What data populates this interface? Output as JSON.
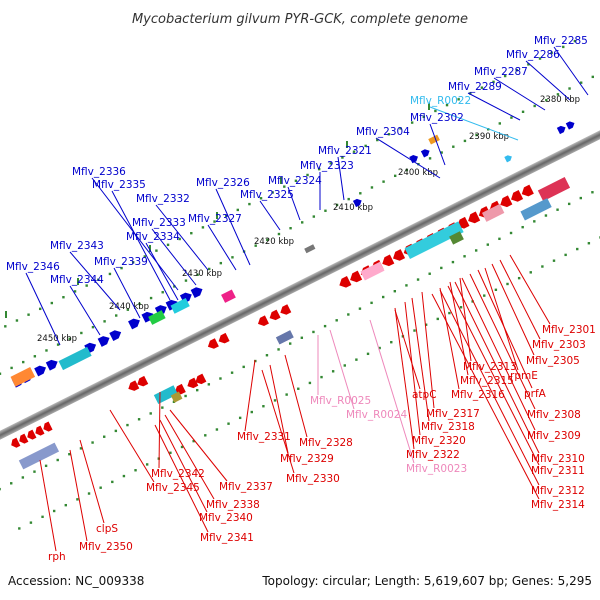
{
  "title": "Mycobacterium gilvum PYR-GCK, complete genome",
  "footer": {
    "accession": "Accession: NC_009338",
    "summary": "Topology: circular; Length: 5,619,607 bp; Genes: 5,295"
  },
  "colors": {
    "forward_gene": "#0000cc",
    "reverse_gene": "#dd0000",
    "trna_forward": "#33bbee",
    "ncrna_reverse": "#ee88bb",
    "backbone": "#888888",
    "tick_dot": "#338833"
  },
  "ticks": [
    {
      "label": "2380 kbp"
    },
    {
      "label": "2390 kbp"
    },
    {
      "label": "2400 kbp"
    },
    {
      "label": "2410 kbp"
    },
    {
      "label": "2420 kbp"
    },
    {
      "label": "2430 kbp"
    },
    {
      "label": "2440 kbp"
    },
    {
      "label": "2450 kbp"
    }
  ],
  "forward_labels": [
    "Mflv_2285",
    "Mflv_2286",
    "Mflv_2287",
    "Mflv_2289",
    "Mflv_R0022",
    "Mflv_2302",
    "Mflv_2304",
    "Mflv_2321",
    "Mflv_2323",
    "Mflv_2324",
    "Mflv_2325",
    "Mflv_2326",
    "Mflv_2327",
    "Mflv_2336",
    "Mflv_2335",
    "Mflv_2332",
    "Mflv_2333",
    "Mflv_2334",
    "Mflv_2343",
    "Mflv_2339",
    "Mflv_2346",
    "Mflv_2344"
  ],
  "reverse_labels": [
    "Mflv_2301",
    "Mflv_2303",
    "Mflv_2305",
    "rpmE",
    "prfA",
    "Mflv_2308",
    "Mflv_2309",
    "Mflv_2310",
    "Mflv_2311",
    "Mflv_2312",
    "Mflv_2314",
    "Mflv_2313",
    "Mflv_2315",
    "Mflv_2316",
    "atpC",
    "Mflv_2317",
    "Mflv_2318",
    "Mflv_2320",
    "Mflv_2322",
    "Mflv_R0023",
    "Mflv_R0024",
    "Mflv_R0025",
    "Mflv_2328",
    "Mflv_2329",
    "Mflv_2330",
    "Mflv_2331",
    "Mflv_2337",
    "Mflv_2338",
    "Mflv_2340",
    "Mflv_2341",
    "Mflv_2342",
    "Mflv_2345",
    "clpS",
    "Mflv_2350",
    "rph"
  ]
}
